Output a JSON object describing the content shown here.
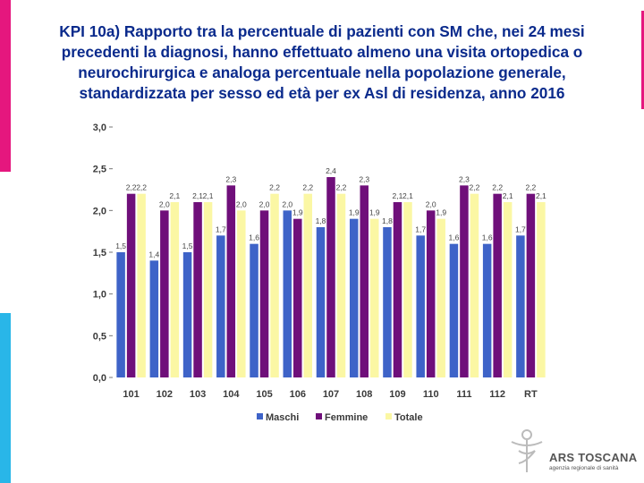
{
  "title": "KPI 10a) Rapporto tra la percentuale di pazienti con SM che, nei 24 mesi precedenti la diagnosi, hanno effettuato almeno una visita ortopedica o neurochirurgica e analoga percentuale nella popolazione generale, standardizzata per sesso ed età per ex Asl di residenza, anno 2016",
  "colors": {
    "maschi": "#3e63c8",
    "femmine": "#6f0f7a",
    "totale": "#fbf7a4",
    "title": "#0a2a8c",
    "accent_pink": "#e5177e",
    "accent_cyan": "#29b6e8"
  },
  "chart_data": {
    "type": "bar",
    "categories": [
      "101",
      "102",
      "103",
      "104",
      "105",
      "106",
      "107",
      "108",
      "109",
      "110",
      "111",
      "112",
      "RT"
    ],
    "series": [
      {
        "name": "Maschi",
        "values": [
          1.5,
          1.4,
          1.5,
          1.7,
          1.6,
          2.0,
          1.8,
          1.9,
          1.8,
          1.7,
          1.6,
          1.6,
          1.7
        ],
        "labels": [
          "1,5",
          "1,4",
          "1,5",
          "1,7",
          "1,6",
          "2,0",
          "1,8",
          "1,9",
          "1,8",
          "1,7",
          "1,6",
          "1,6",
          "1,7"
        ]
      },
      {
        "name": "Femmine",
        "values": [
          2.2,
          2.0,
          2.1,
          2.3,
          2.0,
          1.9,
          2.4,
          2.3,
          2.1,
          2.0,
          2.3,
          2.2,
          2.2
        ],
        "labels": [
          "2,2",
          "2,0",
          "2,1",
          "2,3",
          "2,0",
          "1,9",
          "2,4",
          "2,3",
          "2,1",
          "2,0",
          "2,3",
          "2,2",
          "2,2"
        ]
      },
      {
        "name": "Totale",
        "values": [
          2.2,
          2.1,
          2.1,
          2.0,
          2.2,
          2.2,
          2.2,
          1.9,
          2.1,
          1.9,
          2.2,
          2.1,
          2.1
        ],
        "labels": [
          "2,2",
          "2,1",
          "2,1",
          "2,0",
          "2,2",
          "2,2",
          "2,2",
          "1,9",
          "2,1",
          "1,9",
          "2,2",
          "2,1",
          "2,1"
        ]
      }
    ],
    "yticks": [
      "0,0",
      "0,5",
      "1,0",
      "1,5",
      "2,0",
      "2,5",
      "3,0"
    ],
    "ylim": [
      0,
      3
    ],
    "xlabel": "",
    "ylabel": "",
    "grid": false,
    "legend_position": "bottom"
  },
  "logo": {
    "name": "ARS TOSCANA",
    "subtitle": "agenzia regionale di sanità"
  }
}
